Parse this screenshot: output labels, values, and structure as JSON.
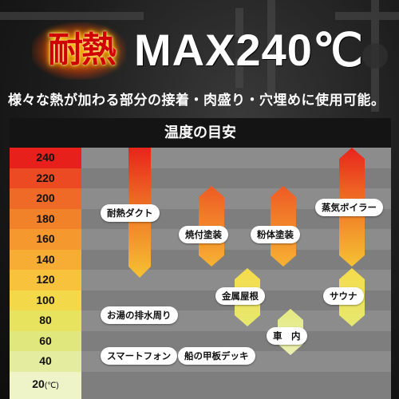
{
  "header": {
    "badge_text": "耐熱",
    "max_text": "MAX240℃",
    "subtitle": "様々な熱が加わる部分の接着・肉盛り・穴埋めに使用可能。"
  },
  "panel": {
    "title": "温度の目安"
  },
  "scale": {
    "unit": "(℃)",
    "ticks": [
      {
        "value": "240",
        "color": "#e8201c"
      },
      {
        "value": "220",
        "color": "#ec4a22"
      },
      {
        "value": "200",
        "color": "#ef6a26"
      },
      {
        "value": "180",
        "color": "#f2822a"
      },
      {
        "value": "160",
        "color": "#f5992e"
      },
      {
        "value": "140",
        "color": "#f7ad34"
      },
      {
        "value": "120",
        "color": "#f8c23c"
      },
      {
        "value": "100",
        "color": "#f3d84a"
      },
      {
        "value": "80",
        "color": "#e8e35e"
      },
      {
        "value": "60",
        "color": "#e0e77c"
      },
      {
        "value": "40",
        "color": "#e4eca0"
      },
      {
        "value": "20",
        "color": "#eef3c8"
      }
    ]
  },
  "items": {
    "duct": {
      "label": "耐熱ダクト",
      "range": [
        240,
        120
      ]
    },
    "yakitsuke": {
      "label": "焼付塗装",
      "range": [
        200,
        140
      ]
    },
    "funtai": {
      "label": "粉体塗装",
      "range": [
        200,
        140
      ]
    },
    "boiler": {
      "label": "蒸気ボイラー",
      "range": [
        240,
        140
      ]
    },
    "kinzoku": {
      "label": "金属屋根",
      "range": [
        120,
        80
      ]
    },
    "sauna": {
      "label": "サウナ",
      "range": [
        120,
        80
      ]
    },
    "oyu": {
      "label": "お湯の排水周り"
    },
    "sha": {
      "label": "車　内",
      "range": [
        80,
        40
      ]
    },
    "smartphone": {
      "label": "スマートフォン"
    },
    "deck": {
      "label": "船の甲板デッキ"
    }
  }
}
